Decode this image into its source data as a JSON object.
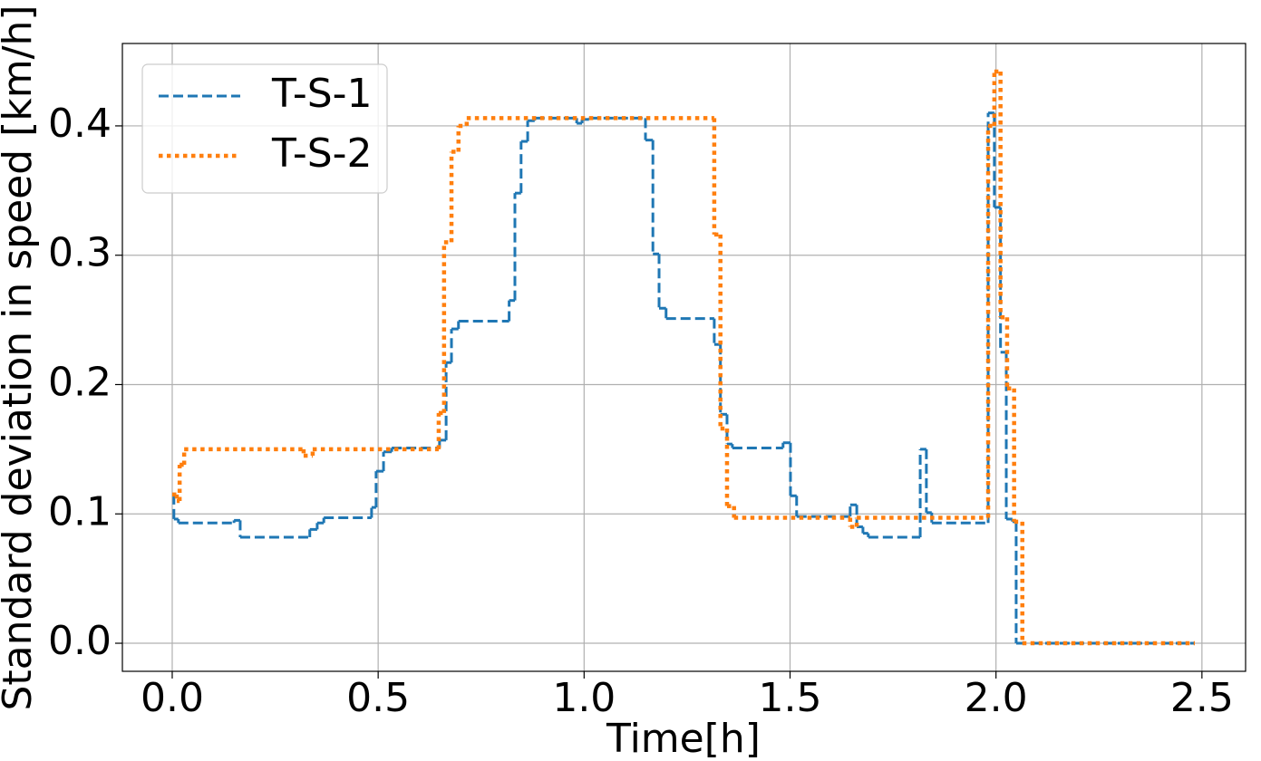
{
  "chart_data": {
    "type": "step",
    "xlabel": "Time[h]",
    "ylabel": "Standard deviation in speed [km/h]",
    "xlim": [
      -0.121,
      2.606
    ],
    "ylim": [
      -0.0217,
      0.4637
    ],
    "xticks": [
      {
        "value": 0,
        "label": "0.0"
      },
      {
        "value": 0.5,
        "label": "0.5"
      },
      {
        "value": 1,
        "label": "1.0"
      },
      {
        "value": 1.5,
        "label": "1.5"
      },
      {
        "value": 2,
        "label": "2.0"
      },
      {
        "value": 2.5,
        "label": "2.5"
      }
    ],
    "yticks": [
      {
        "value": 0,
        "label": "0.0"
      },
      {
        "value": 0.1,
        "label": "0.1"
      },
      {
        "value": 0.2,
        "label": "0.2"
      },
      {
        "value": 0.3,
        "label": "0.3"
      },
      {
        "value": 0.4,
        "label": "0.4"
      }
    ],
    "grid": true,
    "legend": "upper left",
    "series": [
      {
        "name": "T-S-1",
        "color": "#1f77b4",
        "style": "dashed",
        "x": [
          0,
          0.004,
          0.015,
          0.15,
          0.165,
          0.334,
          0.352,
          0.368,
          0.484,
          0.495,
          0.513,
          0.533,
          0.649,
          0.665,
          0.678,
          0.695,
          0.818,
          0.832,
          0.847,
          0.863,
          0.88,
          0.982,
          0.995,
          1.012,
          1.149,
          1.167,
          1.182,
          1.199,
          1.316,
          1.331,
          1.347,
          1.36,
          1.483,
          1.501,
          1.516,
          1.646,
          1.662,
          1.677,
          1.69,
          1.816,
          1.831,
          1.844,
          1.981,
          1.996,
          2.011,
          2.025,
          2.04,
          2.049,
          2.482
        ],
        "values": [
          0.115,
          0.096,
          0.093,
          0.095,
          0.082,
          0.088,
          0.093,
          0.097,
          0.105,
          0.133,
          0.148,
          0.151,
          0.157,
          0.217,
          0.243,
          0.249,
          0.265,
          0.348,
          0.388,
          0.404,
          0.406,
          0.402,
          0.405,
          0.406,
          0.389,
          0.301,
          0.259,
          0.251,
          0.231,
          0.177,
          0.154,
          0.151,
          0.155,
          0.114,
          0.098,
          0.107,
          0.09,
          0.085,
          0.082,
          0.15,
          0.101,
          0.093,
          0.41,
          0.337,
          0.225,
          0.096,
          0.094,
          0,
          0
        ]
      },
      {
        "name": "T-S-2",
        "color": "#ff7f0e",
        "style": "dotted",
        "x": [
          0,
          0.011,
          0.018,
          0.029,
          0.319,
          0.341,
          0.647,
          0.66,
          0.678,
          0.695,
          0.715,
          1.316,
          1.331,
          1.347,
          1.364,
          1.646,
          1.662,
          1.981,
          1.996,
          2.011,
          2.027,
          2.044,
          2.064,
          2.482
        ],
        "values": [
          0.115,
          0.11,
          0.138,
          0.15,
          0.145,
          0.15,
          0.178,
          0.31,
          0.38,
          0.4,
          0.406,
          0.316,
          0.166,
          0.106,
          0.097,
          0.09,
          0.097,
          0.4,
          0.442,
          0.252,
          0.197,
          0.094,
          0,
          0
        ]
      }
    ]
  }
}
